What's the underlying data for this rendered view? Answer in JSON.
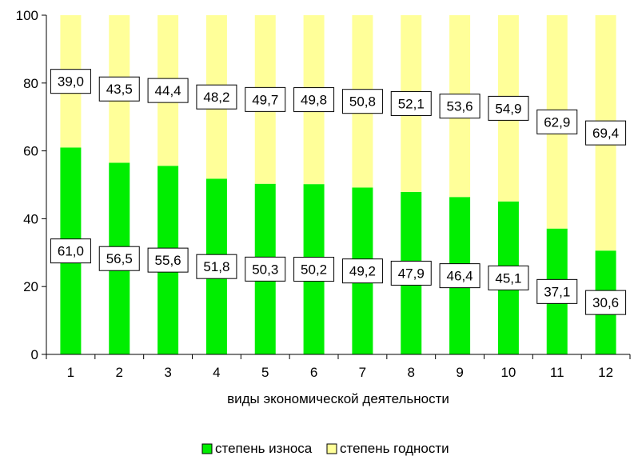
{
  "chart_data": {
    "type": "bar",
    "stacked": true,
    "categories": [
      "1",
      "2",
      "3",
      "4",
      "5",
      "6",
      "7",
      "8",
      "9",
      "10",
      "11",
      "12"
    ],
    "series": [
      {
        "name": "степень износа",
        "color": "#00ee00",
        "values": [
          61.0,
          56.5,
          55.6,
          51.8,
          50.3,
          50.2,
          49.2,
          47.9,
          46.4,
          45.1,
          37.1,
          30.6
        ],
        "labels": [
          "61,0",
          "56,5",
          "55,6",
          "51,8",
          "50,3",
          "50,2",
          "49,2",
          "47,9",
          "46,4",
          "45,1",
          "37,1",
          "30,6"
        ]
      },
      {
        "name": "степень годности",
        "color": "#ffff99",
        "values": [
          39.0,
          43.5,
          44.4,
          48.2,
          49.7,
          49.8,
          50.8,
          52.1,
          53.6,
          54.9,
          62.9,
          69.4
        ],
        "labels": [
          "39,0",
          "43,5",
          "44,4",
          "48,2",
          "49,7",
          "49,8",
          "50,8",
          "52,1",
          "53,6",
          "54,9",
          "62,9",
          "69,4"
        ]
      }
    ],
    "yticks": [
      "0",
      "20",
      "40",
      "60",
      "80",
      "100"
    ],
    "ylim": [
      0,
      100
    ],
    "xlabel": "виды экономической деятельности",
    "ylabel": "",
    "grid": false,
    "legend": "bottom"
  }
}
